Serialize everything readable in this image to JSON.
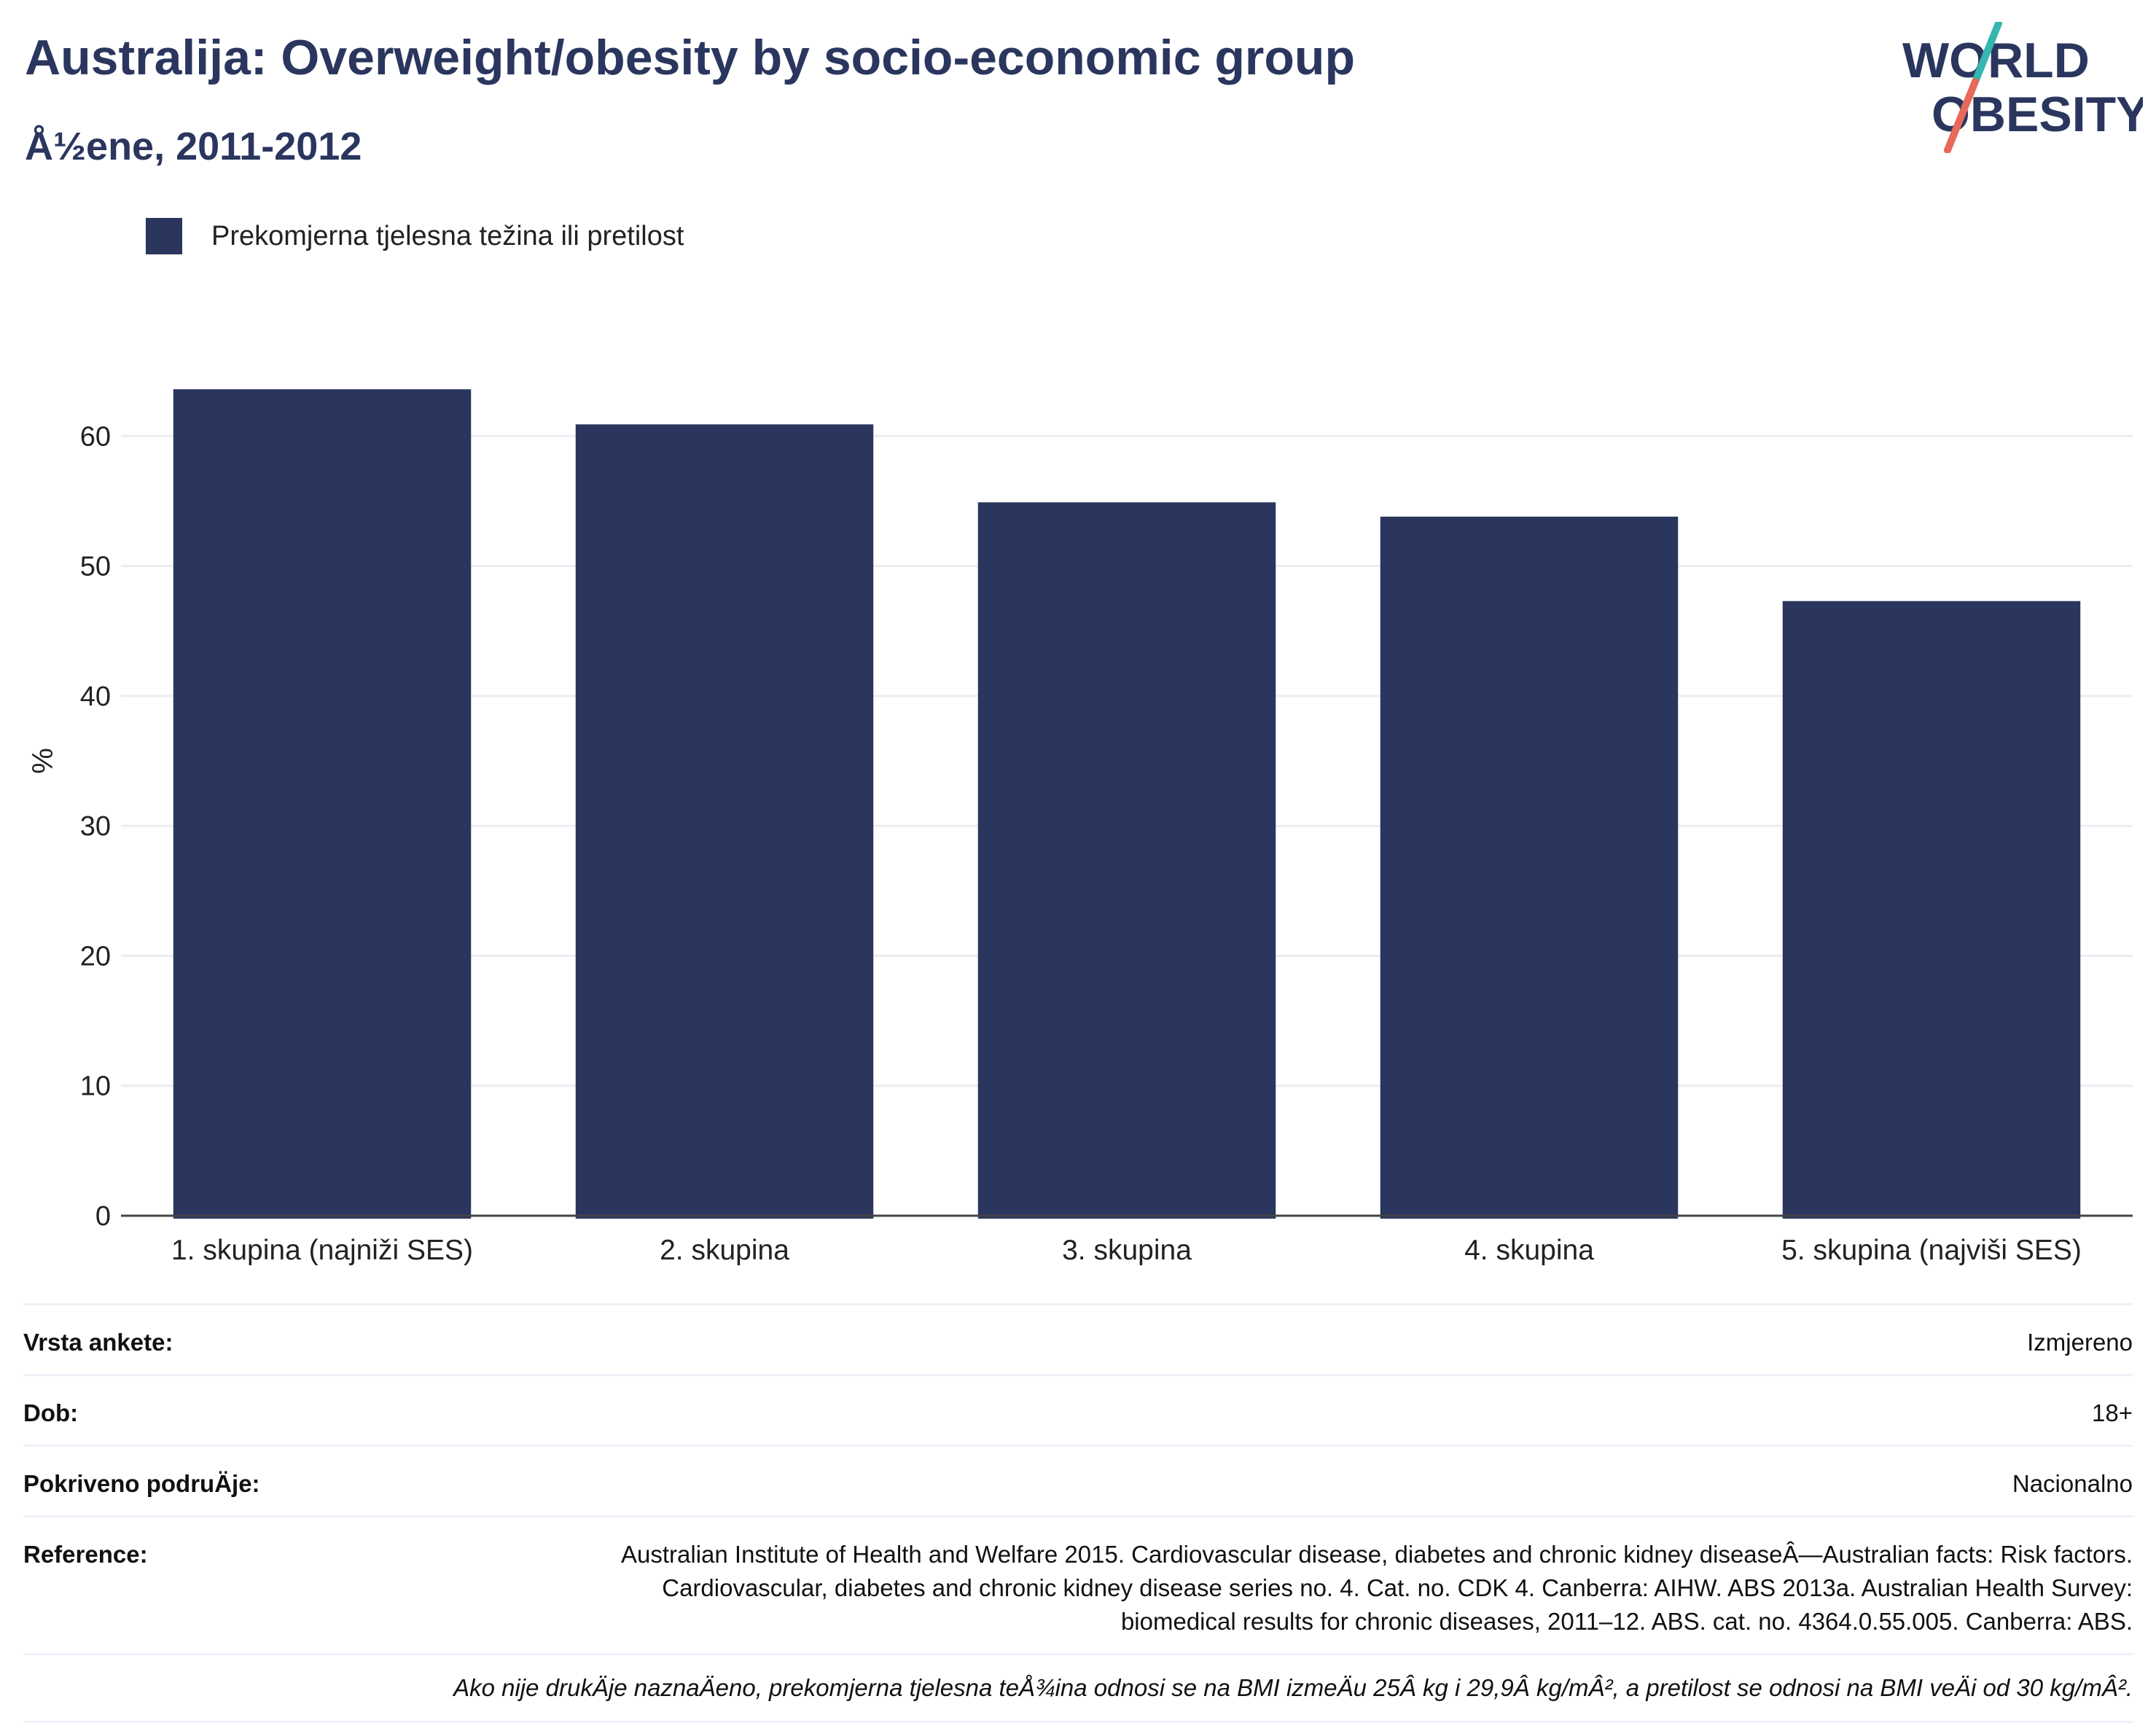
{
  "header": {
    "title": "Australija: Overweight/obesity by socio-economic group",
    "subtitle": "Å½ene, 2011-2012"
  },
  "logo": {
    "line1": "WORLD",
    "line2": "OBESITY",
    "colors": {
      "text": "#2b365f",
      "slash_top": "#36b6b0",
      "slash_bottom": "#e8685a"
    }
  },
  "legend": {
    "label": "Prekomjerna tjelesna težina ili pretilost",
    "color": "#2b365f"
  },
  "chart_data": {
    "type": "bar",
    "categories": [
      "1. skupina (najniži SES)",
      "2. skupina",
      "3. skupina",
      "4. skupina",
      "5. skupina (najviši SES)"
    ],
    "series": [
      {
        "name": "Prekomjerna tjelesna težina ili pretilost",
        "values": [
          63.6,
          60.9,
          54.9,
          53.8,
          47.3
        ],
        "color": "#2b365f"
      }
    ],
    "ylabel": "%",
    "ylim": [
      0,
      70
    ],
    "yticks": [
      0,
      10,
      20,
      30,
      40,
      50,
      60
    ],
    "grid": true,
    "legend_position": "top-left"
  },
  "info": {
    "rows": [
      {
        "label": "Vrsta ankete:",
        "value": "Izmjereno"
      },
      {
        "label": "Dob:",
        "value": "18+"
      },
      {
        "label": "Pokriveno podruÄje:",
        "value": "Nacionalno"
      },
      {
        "label": "Reference:",
        "value": "Australian Institute of Health and Welfare 2015. Cardiovascular disease, diabetes and chronic kidney diseaseÂ—Australian facts: Risk factors. Cardiovascular, diabetes and chronic kidney disease series no. 4. Cat. no. CDK 4. Canberra: AIHW. ABS 2013a. Australian Health Survey: biomedical results for chronic diseases, 2011–12. ABS. cat. no. 4364.0.55.005. Canberra: ABS."
      }
    ],
    "note": "Ako nije drukÄje naznaÄeno, prekomjerna tjelesna teÅ¾ina odnosi se na BMI izmeÄu 25Â kg i 29,9Â kg/mÂ², a pretilost se odnosi na BMI veÄi od 30 kg/mÂ²."
  }
}
